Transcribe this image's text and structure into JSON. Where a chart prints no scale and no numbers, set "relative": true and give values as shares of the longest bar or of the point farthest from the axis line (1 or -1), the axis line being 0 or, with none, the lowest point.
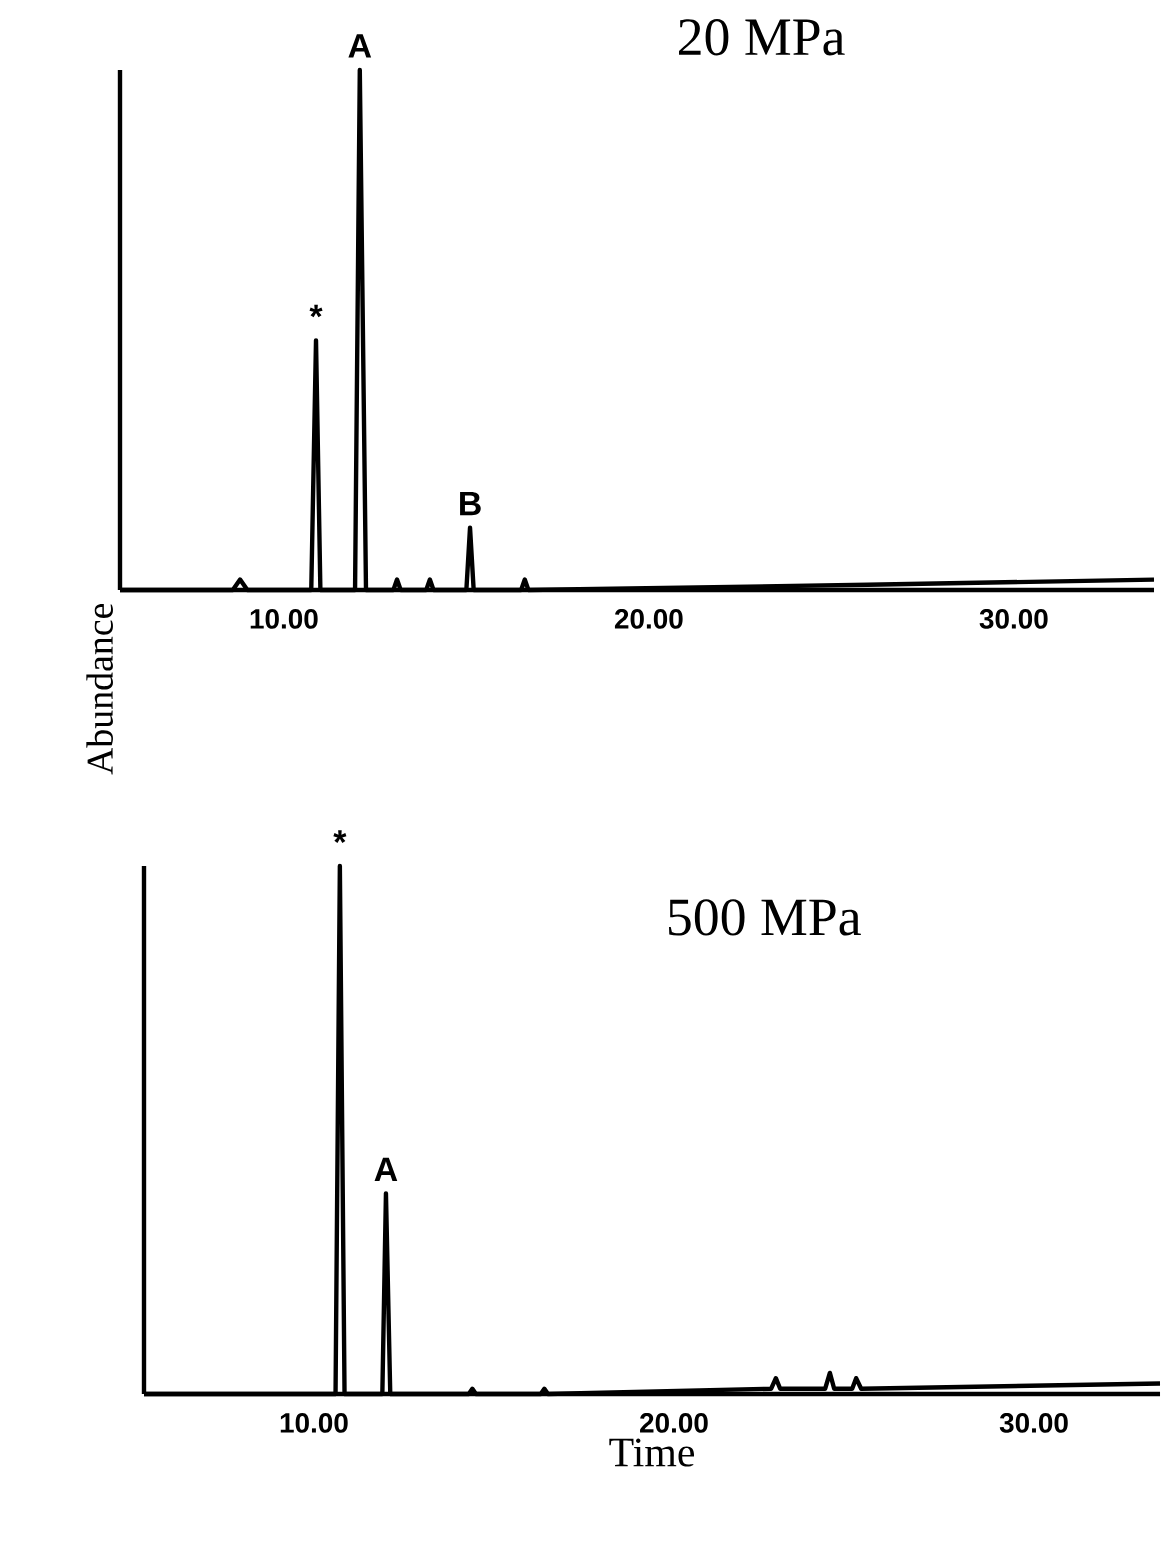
{
  "chart_data": [
    {
      "type": "line",
      "title": "20 MPa",
      "ylabel": "Abundance",
      "relative": true,
      "color": "#000000",
      "x": [
        5.51,
        8.6,
        8.8,
        9.0,
        10.75,
        10.88,
        11.0,
        11.95,
        12.08,
        12.25,
        13.0,
        13.1,
        13.2,
        13.9,
        14.0,
        14.1,
        15.0,
        15.1,
        15.2,
        16.5,
        16.6,
        16.7,
        26.0,
        33.84
      ],
      "values": [
        0,
        0,
        0.02,
        0,
        0,
        0.48,
        0,
        0,
        1,
        0,
        0,
        0.02,
        0,
        0,
        0.02,
        0,
        0,
        0.12,
        0,
        0,
        0.02,
        0,
        0.01,
        0.02
      ],
      "xlim": [
        5.51,
        33.84
      ],
      "xticks": [
        {
          "value": 10,
          "label": "10.00"
        },
        {
          "value": 20,
          "label": "20.00"
        },
        {
          "value": 30,
          "label": "30.00"
        }
      ],
      "annotations": [
        {
          "text": "*",
          "x": 10.88,
          "y": 0.48
        },
        {
          "text": "A",
          "x": 12.08,
          "y": 1
        },
        {
          "text": "B",
          "x": 15.1,
          "y": 0.12
        }
      ]
    },
    {
      "type": "line",
      "title": "500 MPa",
      "xlabel": "Time",
      "relative": true,
      "color": "#000000",
      "x": [
        5.28,
        10.6,
        10.72,
        10.85,
        11.9,
        12.0,
        12.12,
        14.3,
        14.4,
        14.5,
        16.3,
        16.4,
        16.5,
        22.7,
        22.83,
        22.95,
        24.2,
        24.33,
        24.45,
        24.95,
        25.06,
        25.2,
        33.5
      ],
      "values": [
        0,
        0,
        1,
        0,
        0,
        0.38,
        0,
        0,
        0.01,
        0,
        0,
        0.01,
        0,
        0.01,
        0.03,
        0.01,
        0.01,
        0.04,
        0.01,
        0.01,
        0.03,
        0.01,
        0.02
      ],
      "xlim": [
        5.28,
        33.5
      ],
      "xticks": [
        {
          "value": 10,
          "label": "10.00"
        },
        {
          "value": 20,
          "label": "20.00"
        },
        {
          "value": 30,
          "label": "30.00"
        }
      ],
      "annotations": [
        {
          "text": "*",
          "x": 10.72,
          "y": 1
        },
        {
          "text": "A",
          "x": 12.0,
          "y": 0.38
        }
      ]
    }
  ]
}
